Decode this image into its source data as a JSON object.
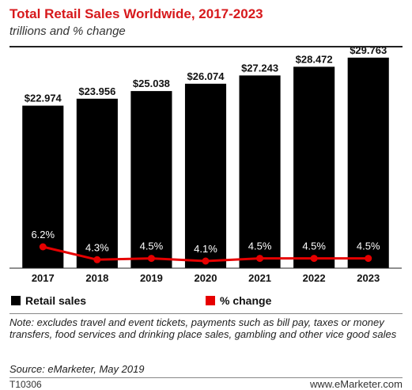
{
  "header": {
    "title": "Total Retail Sales Worldwide, 2017-2023",
    "subtitle": "trillions and % change"
  },
  "colors": {
    "bar": "#000000",
    "line": "#e60000",
    "title": "#d7191c"
  },
  "chart_data": {
    "type": "bar",
    "categories": [
      "2017",
      "2018",
      "2019",
      "2020",
      "2021",
      "2022",
      "2023"
    ],
    "series": [
      {
        "name": "Retail sales",
        "type": "bar",
        "values": [
          22.974,
          23.956,
          25.038,
          26.074,
          27.243,
          28.472,
          29.763
        ],
        "labels": [
          "$22.974",
          "$23.956",
          "$25.038",
          "$26.074",
          "$27.243",
          "$28.472",
          "$29.763"
        ]
      },
      {
        "name": "% change",
        "type": "line",
        "values": [
          6.2,
          4.3,
          4.5,
          4.1,
          4.5,
          4.5,
          4.5
        ],
        "labels": [
          "6.2%",
          "4.3%",
          "4.5%",
          "4.1%",
          "4.5%",
          "4.5%",
          "4.5%"
        ]
      }
    ],
    "legend": "bottom",
    "grid": false
  },
  "legend": {
    "retail_sales": "Retail sales",
    "pct_change": "% change"
  },
  "footer": {
    "note": "Note: excludes travel and event tickets, payments such as bill pay, taxes or money transfers, food services and drinking place sales, gambling and other vice good sales",
    "source": "Source: eMarketer, May 2019",
    "code": "T10306",
    "brand": "www.eMarketer.com"
  }
}
